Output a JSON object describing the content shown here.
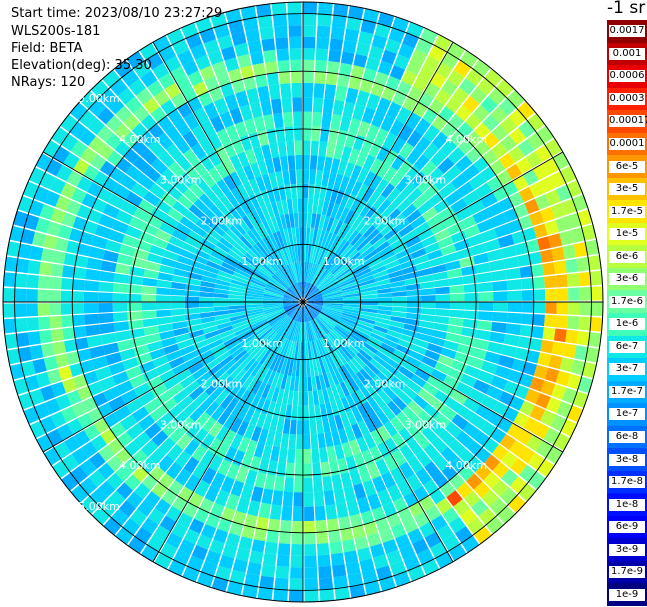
{
  "header": {
    "start_time": "Start time: 2023/08/10 23:27:29",
    "device": "WLS200s-181",
    "field": "Field: BETA",
    "elevation": "Elevation(deg): 35.30",
    "nrays": "NRays: 120"
  },
  "colorbar": {
    "unit": "-1 sr",
    "colors": [
      "#000080",
      "#0000a8",
      "#0000d0",
      "#0000f8",
      "#0010ff",
      "#0030ff",
      "#0050ff",
      "#0070ff",
      "#0090ff",
      "#00acff",
      "#00ccff",
      "#10e8e8",
      "#40ffb8",
      "#6affa0",
      "#90ff70",
      "#b8ff40",
      "#e0ff20",
      "#ffe400",
      "#ffc000",
      "#ff9800",
      "#ff7000",
      "#ff4800",
      "#ff2000",
      "#e80000",
      "#c00000",
      "#900000"
    ],
    "labels": [
      "0.0017",
      "0.001",
      "0.0006",
      "0.0003",
      "0.00017",
      "0.0001",
      "6e-5",
      "3e-5",
      "1.7e-5",
      "1e-5",
      "6e-6",
      "3e-6",
      "1.7e-6",
      "1e-6",
      "6e-7",
      "3e-7",
      "1.7e-7",
      "1e-7",
      "6e-8",
      "3e-8",
      "1.7e-8",
      "1e-8",
      "6e-9",
      "3e-9",
      "1.7e-9",
      "1e-9"
    ]
  },
  "chart_data": {
    "type": "heatmap",
    "projection": "polar PPI scan",
    "n_rays": 120,
    "range_max_km": 5.2,
    "range_ring_labels": [
      "1.00km",
      "2.00km",
      "3.00km",
      "4.00km",
      "5.00km"
    ],
    "range_rings_km": [
      1,
      2,
      3,
      4,
      5
    ],
    "high_backscatter_band_km": [
      3.9,
      4.5
    ],
    "colorscale": "log10 beta, 1e-9 to 0.0017 sr-1"
  }
}
